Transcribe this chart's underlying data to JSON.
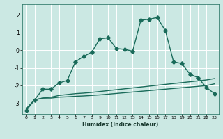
{
  "title": "",
  "xlabel": "Humidex (Indice chaleur)",
  "ylabel": "",
  "background_color": "#cbe8e3",
  "grid_color": "#ffffff",
  "line_color": "#1a6b5a",
  "xlim": [
    -0.5,
    23.5
  ],
  "ylim": [
    -3.6,
    2.6
  ],
  "yticks": [
    -3,
    -2,
    -1,
    0,
    1,
    2
  ],
  "xticks": [
    0,
    1,
    2,
    3,
    4,
    5,
    6,
    7,
    8,
    9,
    10,
    11,
    12,
    13,
    14,
    15,
    16,
    17,
    18,
    19,
    20,
    21,
    22,
    23
  ],
  "series1_x": [
    0,
    1,
    2,
    3,
    4,
    5,
    6,
    7,
    8,
    9,
    10,
    11,
    12,
    13,
    14,
    15,
    16,
    17,
    18,
    19,
    20,
    21,
    22,
    23
  ],
  "series1_y": [
    -3.3,
    -2.8,
    -2.7,
    -2.65,
    -2.55,
    -2.5,
    -2.45,
    -2.42,
    -2.38,
    -2.33,
    -2.28,
    -2.23,
    -2.18,
    -2.13,
    -2.08,
    -2.03,
    -1.98,
    -1.93,
    -1.88,
    -1.83,
    -1.78,
    -1.73,
    -1.68,
    -1.6
  ],
  "series2_x": [
    0,
    1,
    2,
    3,
    4,
    5,
    6,
    7,
    8,
    9,
    10,
    11,
    12,
    13,
    14,
    15,
    16,
    17,
    18,
    19,
    20,
    21,
    22,
    23
  ],
  "series2_y": [
    -3.3,
    -2.8,
    -2.7,
    -2.7,
    -2.65,
    -2.63,
    -2.6,
    -2.58,
    -2.55,
    -2.52,
    -2.48,
    -2.44,
    -2.4,
    -2.36,
    -2.32,
    -2.28,
    -2.24,
    -2.2,
    -2.16,
    -2.12,
    -2.08,
    -2.04,
    -2.0,
    -1.9
  ],
  "series3_x": [
    0,
    1,
    2,
    3,
    4,
    5,
    6,
    7,
    8,
    9,
    10,
    11,
    12,
    13,
    14,
    15,
    16,
    17,
    18,
    19,
    20,
    21,
    22,
    23
  ],
  "series3_y": [
    -3.4,
    -2.8,
    -2.2,
    -2.2,
    -1.85,
    -1.7,
    -0.65,
    -0.35,
    -0.1,
    0.65,
    0.7,
    0.1,
    0.05,
    -0.05,
    1.7,
    1.75,
    1.85,
    1.1,
    -0.65,
    -0.75,
    -1.35,
    -1.55,
    -2.1,
    -2.45
  ],
  "marker": "D",
  "marker_size": 2.8,
  "line_width": 1.0
}
